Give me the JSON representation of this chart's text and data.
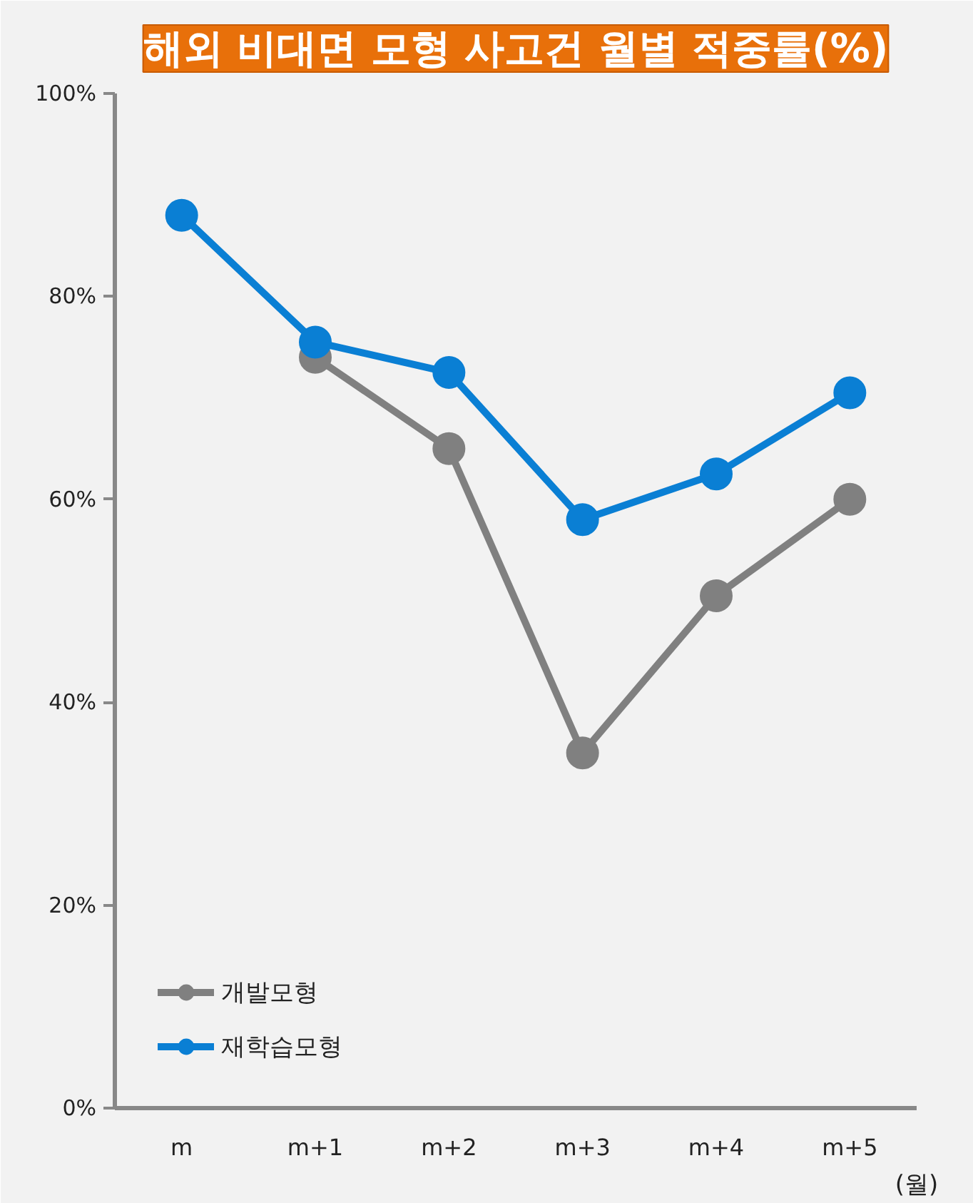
{
  "chart_data": {
    "type": "line",
    "title": "해외 비대면 모형 사고건 월별 적중률(%)",
    "xlabel": "(월)",
    "categories": [
      "m",
      "m+1",
      "m+2",
      "m+3",
      "m+4",
      "m+5"
    ],
    "ylim": [
      0,
      100
    ],
    "yticks": [
      {
        "value": 0,
        "label": "0%"
      },
      {
        "value": 20,
        "label": "20%"
      },
      {
        "value": 40,
        "label": "40%"
      },
      {
        "value": 60,
        "label": "60%"
      },
      {
        "value": 80,
        "label": "80%"
      },
      {
        "value": 100,
        "label": "100%"
      }
    ],
    "series": [
      {
        "name": "개발모형",
        "color": "#808080",
        "values": [
          null,
          74,
          65,
          35,
          50.5,
          60
        ]
      },
      {
        "name": "재학습모형",
        "color": "#0a7fd4",
        "values": [
          88,
          75.5,
          72.5,
          58,
          62.5,
          70.5
        ]
      }
    ],
    "marker": "circle",
    "line_style": "solid",
    "grid": false,
    "legend": "bottom left"
  }
}
